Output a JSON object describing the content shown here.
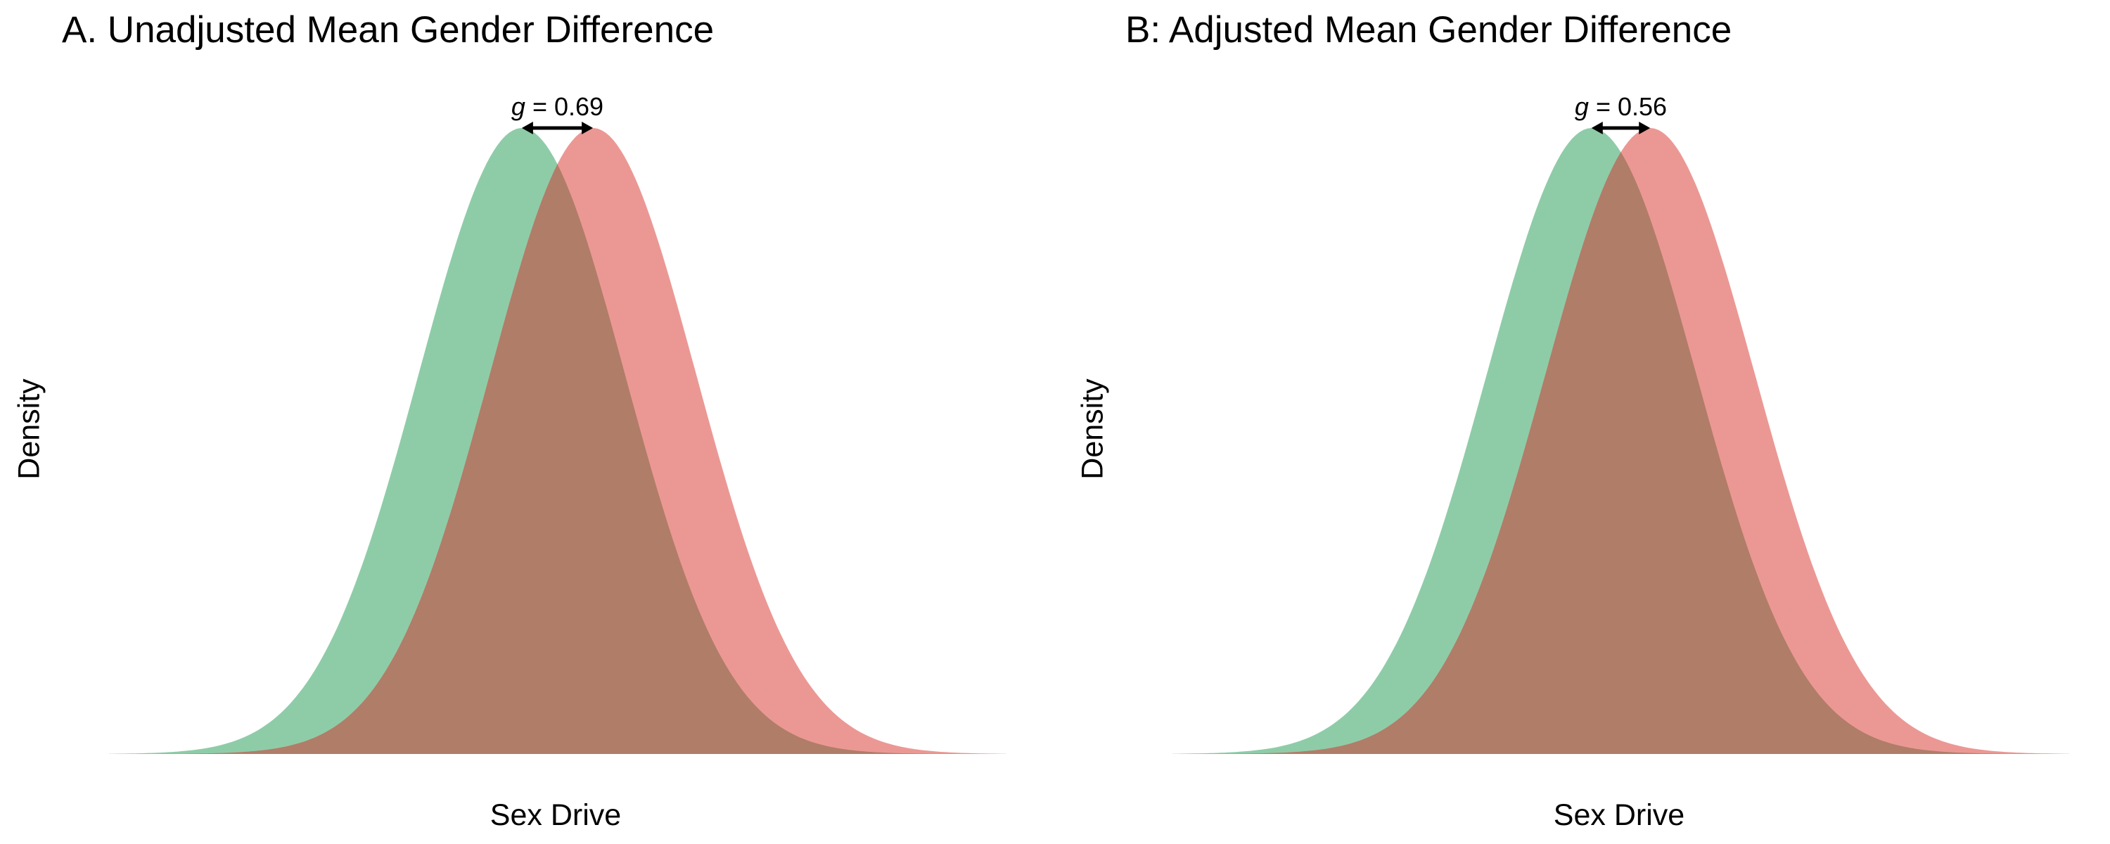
{
  "chart_data": [
    {
      "type": "area",
      "title": "A. Unadjusted Mean Gender Difference",
      "xlabel": "Sex Drive",
      "ylabel": "Density",
      "annotation": {
        "label": "g",
        "operator": "=",
        "value": "0.69"
      },
      "effect_size": 0.69,
      "xlim": [
        -4,
        4.69
      ],
      "grid": false,
      "legend": "none",
      "series": [
        {
          "mean": 0.0,
          "sd": 1,
          "color": "#8ecca8"
        },
        {
          "mean": 0.69,
          "sd": 1,
          "color": "#eb9894"
        }
      ],
      "overlap_color": "#b07d68"
    },
    {
      "type": "area",
      "title": "B: Adjusted Mean Gender Difference",
      "xlabel": "Sex Drive",
      "ylabel": "Density",
      "annotation": {
        "label": "g",
        "operator": "=",
        "value": "0.56"
      },
      "effect_size": 0.56,
      "xlim": [
        -4,
        4.56
      ],
      "grid": false,
      "legend": "none",
      "series": [
        {
          "mean": 0.0,
          "sd": 1,
          "color": "#8ecca8"
        },
        {
          "mean": 0.56,
          "sd": 1,
          "color": "#eb9894"
        }
      ],
      "overlap_color": "#b07d68"
    }
  ]
}
